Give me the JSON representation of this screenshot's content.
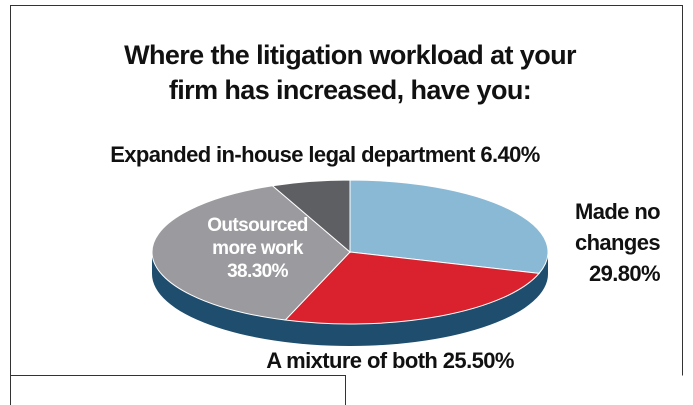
{
  "chart_data": {
    "type": "pie",
    "title": "Where the litigation workload at your firm has increased, have you:",
    "categories": [
      "Made no changes",
      "A mixture of both",
      "Outsourced more work",
      "Expanded in-house legal department"
    ],
    "values": [
      29.8,
      25.5,
      38.3,
      6.4
    ],
    "value_labels": [
      "29.80%",
      "25.50%",
      "38.30%",
      "6.40%"
    ],
    "colors": [
      "#8ab9d5",
      "#d9222d",
      "#9b9b9f",
      "#5e5f63"
    ],
    "side_color": "#1e4d6d"
  }
}
